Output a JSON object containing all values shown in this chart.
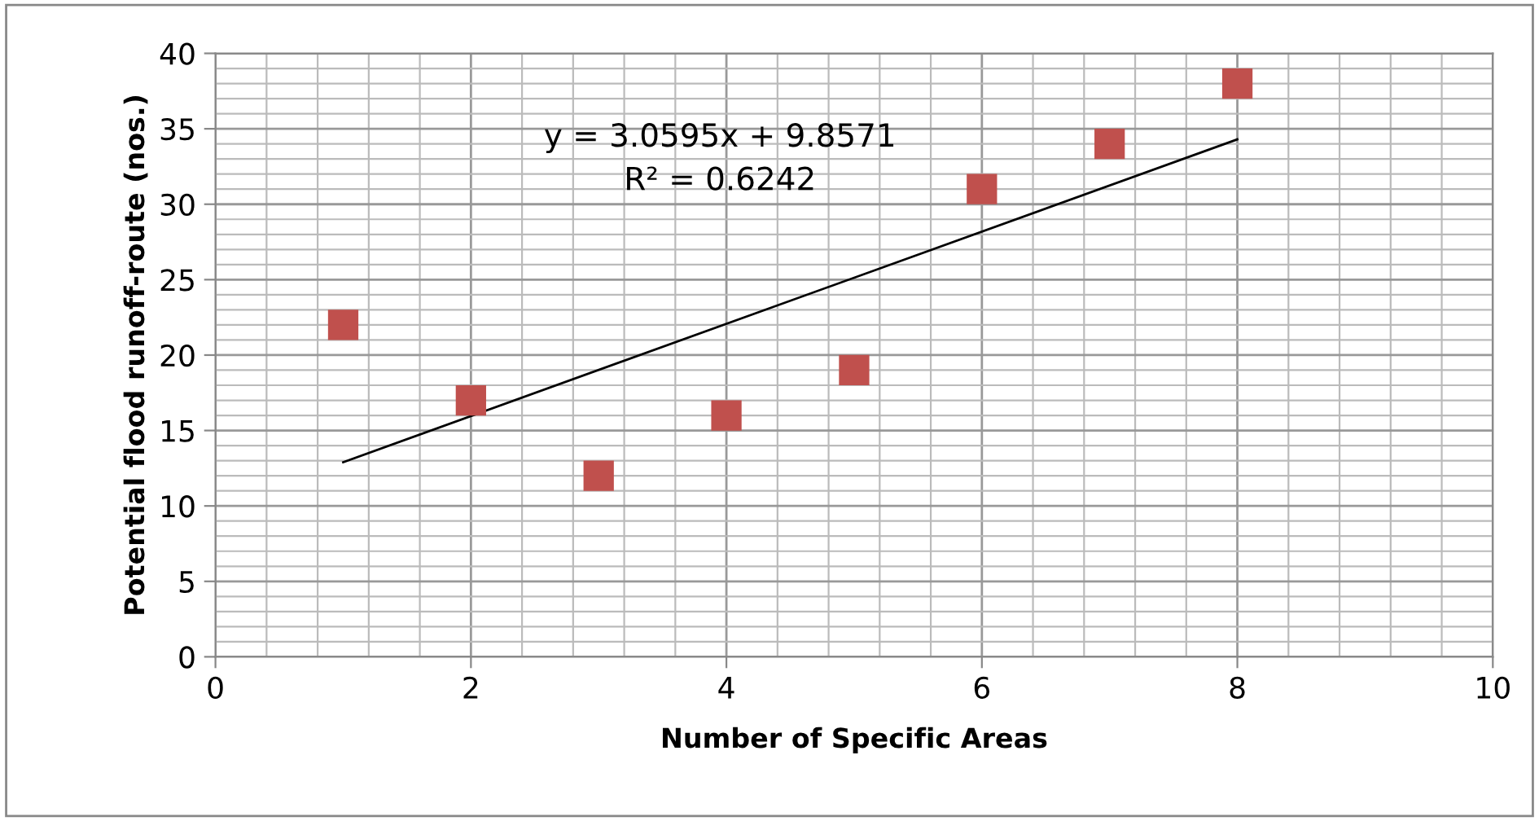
{
  "chart_data": {
    "type": "scatter",
    "xlabel": "Number of Specific Areas",
    "ylabel": "Potential flood runoff-route (nos.)",
    "x": [
      1,
      2,
      3,
      4,
      5,
      6,
      7,
      8
    ],
    "series": [
      {
        "color": "#c0504d",
        "marker": "square",
        "values": [
          22,
          17,
          12,
          16,
          19,
          31,
          34,
          38
        ]
      },
      {
        "type": "line",
        "color": "#000000",
        "x": [
          1,
          8
        ],
        "values": [
          12.9,
          34.3
        ],
        "marker": "none",
        "line_style": "solid"
      }
    ],
    "annotations": [
      "y = 3.0595x + 9.8571",
      "R² = 0.6242"
    ],
    "xlim": [
      0,
      10
    ],
    "xticks": [
      0,
      2,
      4,
      6,
      8,
      10
    ],
    "ylim": [
      0,
      40
    ],
    "yticks": [
      0,
      5,
      10,
      15,
      20,
      25,
      30,
      35,
      40
    ],
    "grid": true,
    "legend": false
  }
}
